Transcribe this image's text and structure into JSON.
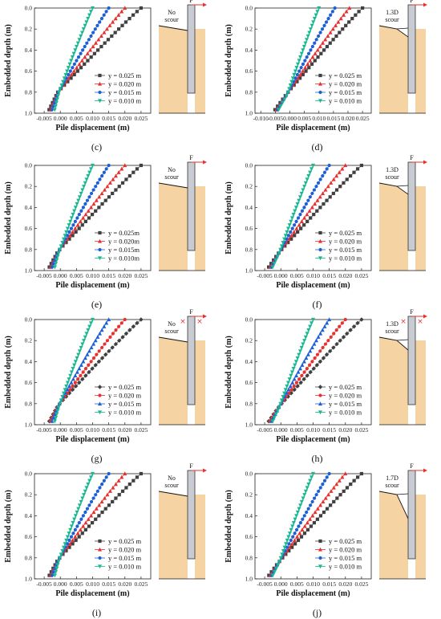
{
  "colors": {
    "y025": "#404040",
    "y020": "#e8312f",
    "y015": "#1c5fd6",
    "y010": "#19b890",
    "soil": "#f5d3a3",
    "pile": "#c8ccd2",
    "arrow": "#e8312f"
  },
  "chart_data": [
    {
      "type": "scatter",
      "panel_label": "(c)",
      "xlabel": "Pile displacement (m)",
      "ylabel": "Embedded depth (m)",
      "xlim": [
        -0.008,
        0.028
      ],
      "ylim": [
        1.0,
        0.0
      ],
      "xticks": [
        "-0.005",
        "0.000",
        "0.005",
        "0.010",
        "0.015",
        "0.020",
        "0.025"
      ],
      "yticks": [
        "0.0",
        "0.2",
        "0.4",
        "0.6",
        "0.8",
        "1.0"
      ],
      "grid": false,
      "legend_position": "bottom-right",
      "series": [
        {
          "name": "y = 0.025 m",
          "marker": "square",
          "x_top": 0.025,
          "x_bottom": -0.004,
          "pivot_depth": 0.8
        },
        {
          "name": "y = 0.020 m",
          "marker": "triangle-up",
          "x_top": 0.02,
          "x_bottom": -0.0035,
          "pivot_depth": 0.8
        },
        {
          "name": "y = 0.015 m",
          "marker": "circle",
          "x_top": 0.015,
          "x_bottom": -0.003,
          "pivot_depth": 0.8
        },
        {
          "name": "y = 0.010 m",
          "marker": "triangle-down",
          "x_top": 0.01,
          "x_bottom": -0.002,
          "pivot_depth": 0.8
        }
      ],
      "schematic": {
        "label_line1": "No",
        "label_line2": "scour",
        "force_label": "F",
        "scour": false,
        "cross_marks": false,
        "scour_depth": "none"
      }
    },
    {
      "type": "scatter",
      "panel_label": "(d)",
      "xlabel": "Pile displacement (m)",
      "ylabel": "Embedded depth (m)",
      "xlim": [
        -0.012,
        0.028
      ],
      "ylim": [
        1.0,
        0.0
      ],
      "xticks": [
        "-0.010",
        "-0.005",
        "0.000",
        "0.005",
        "0.010",
        "0.015",
        "0.020",
        "0.025"
      ],
      "yticks": [
        "0.0",
        "0.2",
        "0.4",
        "0.6",
        "0.8",
        "1.0"
      ],
      "grid": false,
      "legend_position": "bottom-right",
      "series": [
        {
          "name": "y = 0.025 m",
          "marker": "square",
          "x_top": 0.025,
          "x_bottom": -0.006,
          "pivot_depth": 0.82
        },
        {
          "name": "y = 0.020 m",
          "marker": "triangle-up",
          "x_top": 0.0205,
          "x_bottom": -0.0055,
          "pivot_depth": 0.82
        },
        {
          "name": "y = 0.015 m",
          "marker": "circle",
          "x_top": 0.0155,
          "x_bottom": -0.005,
          "pivot_depth": 0.82
        },
        {
          "name": "y = 0.010 m",
          "marker": "triangle-down",
          "x_top": 0.01,
          "x_bottom": -0.0045,
          "pivot_depth": 0.82
        }
      ],
      "schematic": {
        "label_line1": "1.3D",
        "label_line2": "scour",
        "force_label": "F",
        "scour": true,
        "cross_marks": false,
        "scour_depth": "small"
      }
    },
    {
      "type": "scatter",
      "panel_label": "(e)",
      "xlabel": "Pile displacement (m)",
      "ylabel": "Embedded depth (m)",
      "xlim": [
        -0.008,
        0.028
      ],
      "ylim": [
        1.0,
        0.0
      ],
      "xticks": [
        "-0.005",
        "0.000",
        "0.005",
        "0.010",
        "0.015",
        "0.020",
        "0.025"
      ],
      "yticks": [
        "0.0",
        "0.2",
        "0.4",
        "0.6",
        "0.8",
        "1.0"
      ],
      "grid": false,
      "legend_position": "bottom-right",
      "series": [
        {
          "name": "y = 0.025m",
          "marker": "square",
          "x_top": 0.025,
          "x_bottom": -0.004,
          "pivot_depth": 0.82
        },
        {
          "name": "y = 0.020m",
          "marker": "triangle-up",
          "x_top": 0.02,
          "x_bottom": -0.0035,
          "pivot_depth": 0.82
        },
        {
          "name": "y = 0.015m",
          "marker": "circle",
          "x_top": 0.015,
          "x_bottom": -0.003,
          "pivot_depth": 0.82
        },
        {
          "name": "y = 0.010m",
          "marker": "triangle-down",
          "x_top": 0.01,
          "x_bottom": -0.002,
          "pivot_depth": 0.82
        }
      ],
      "schematic": {
        "label_line1": "No",
        "label_line2": "scour",
        "force_label": "F",
        "scour": false,
        "cross_marks": false,
        "scour_depth": "none"
      }
    },
    {
      "type": "scatter",
      "panel_label": "(f)",
      "xlabel": "Pile displacement (m)",
      "ylabel": "Embedded depth (m)",
      "xlim": [
        -0.008,
        0.028
      ],
      "ylim": [
        1.0,
        0.0
      ],
      "xticks": [
        "-0.005",
        "0.000",
        "0.005",
        "0.010",
        "0.015",
        "0.020",
        "0.025"
      ],
      "yticks": [
        "0.0",
        "0.2",
        "0.4",
        "0.6",
        "0.8",
        "1.0"
      ],
      "grid": false,
      "legend_position": "bottom-right",
      "series": [
        {
          "name": "y = 0.025 m",
          "marker": "square",
          "x_top": 0.025,
          "x_bottom": -0.0045,
          "pivot_depth": 0.84
        },
        {
          "name": "y = 0.020 m",
          "marker": "triangle-up",
          "x_top": 0.02,
          "x_bottom": -0.004,
          "pivot_depth": 0.84
        },
        {
          "name": "y = 0.015 m",
          "marker": "circle",
          "x_top": 0.015,
          "x_bottom": -0.0035,
          "pivot_depth": 0.84
        },
        {
          "name": "y = 0.010 m",
          "marker": "triangle-down",
          "x_top": 0.01,
          "x_bottom": -0.003,
          "pivot_depth": 0.84
        }
      ],
      "schematic": {
        "label_line1": "1.3D",
        "label_line2": "scour",
        "force_label": "F",
        "scour": true,
        "cross_marks": false,
        "scour_depth": "small"
      }
    },
    {
      "type": "scatter",
      "panel_label": "(g)",
      "xlabel": "Pile displacement (m)",
      "ylabel": "Embedded depth (m)",
      "xlim": [
        -0.008,
        0.028
      ],
      "ylim": [
        1.0,
        0.0
      ],
      "xticks": [
        "-0.005",
        "0.000",
        "0.005",
        "0.010",
        "0.015",
        "0.020",
        "0.025"
      ],
      "yticks": [
        "0.0",
        "0.2",
        "0.4",
        "0.6",
        "0.8",
        "1.0"
      ],
      "grid": false,
      "legend_position": "bottom-right",
      "series": [
        {
          "name": "y = 0.025 m",
          "marker": "diamond",
          "x_top": 0.025,
          "x_bottom": -0.004,
          "pivot_depth": 0.82
        },
        {
          "name": "y = 0.020 m",
          "marker": "circle",
          "x_top": 0.02,
          "x_bottom": -0.0035,
          "pivot_depth": 0.82
        },
        {
          "name": "y = 0.015 m",
          "marker": "triangle-up",
          "x_top": 0.015,
          "x_bottom": -0.003,
          "pivot_depth": 0.82
        },
        {
          "name": "y = 0.010 m",
          "marker": "triangle-down",
          "x_top": 0.01,
          "x_bottom": -0.002,
          "pivot_depth": 0.82
        }
      ],
      "schematic": {
        "label_line1": "No",
        "label_line2": "scour",
        "force_label": "F",
        "scour": false,
        "cross_marks": true,
        "scour_depth": "none"
      }
    },
    {
      "type": "scatter",
      "panel_label": "(h)",
      "xlabel": "Pile displacement (m)",
      "ylabel": "Embedded depth (m)",
      "xlim": [
        -0.008,
        0.028
      ],
      "ylim": [
        1.0,
        0.0
      ],
      "xticks": [
        "-0.005",
        "0.000",
        "0.005",
        "0.010",
        "0.015",
        "0.020",
        "0.025"
      ],
      "yticks": [
        "0.0",
        "0.2",
        "0.4",
        "0.6",
        "0.8",
        "1.0"
      ],
      "grid": false,
      "legend_position": "bottom-right",
      "series": [
        {
          "name": "y = 0.025 m",
          "marker": "diamond",
          "x_top": 0.025,
          "x_bottom": -0.0045,
          "pivot_depth": 0.84
        },
        {
          "name": "y = 0.020 m",
          "marker": "circle",
          "x_top": 0.02,
          "x_bottom": -0.004,
          "pivot_depth": 0.84
        },
        {
          "name": "y = 0.015 m",
          "marker": "triangle-up",
          "x_top": 0.015,
          "x_bottom": -0.0035,
          "pivot_depth": 0.84
        },
        {
          "name": "y = 0.010 m",
          "marker": "triangle-down",
          "x_top": 0.01,
          "x_bottom": -0.003,
          "pivot_depth": 0.84
        }
      ],
      "schematic": {
        "label_line1": "1.3D",
        "label_line2": "scour",
        "force_label": "F",
        "scour": true,
        "cross_marks": true,
        "scour_depth": "medium"
      }
    },
    {
      "type": "scatter",
      "panel_label": "(i)",
      "xlabel": "Pile displacement (m)",
      "ylabel": "Embedded depth (m)",
      "xlim": [
        -0.008,
        0.028
      ],
      "ylim": [
        1.0,
        0.0
      ],
      "xticks": [
        "-0.005",
        "0.000",
        "0.005",
        "0.010",
        "0.015",
        "0.020",
        "0.025"
      ],
      "yticks": [
        "0.0",
        "0.2",
        "0.4",
        "0.6",
        "0.8",
        "1.0"
      ],
      "grid": false,
      "legend_position": "bottom-right",
      "series": [
        {
          "name": "y = 0.025 m",
          "marker": "square",
          "x_top": 0.025,
          "x_bottom": -0.004,
          "pivot_depth": 0.82
        },
        {
          "name": "y = 0.020 m",
          "marker": "triangle-up",
          "x_top": 0.02,
          "x_bottom": -0.0035,
          "pivot_depth": 0.82
        },
        {
          "name": "y = 0.015 m",
          "marker": "circle",
          "x_top": 0.015,
          "x_bottom": -0.003,
          "pivot_depth": 0.82
        },
        {
          "name": "y = 0.010 m",
          "marker": "triangle-down",
          "x_top": 0.01,
          "x_bottom": -0.002,
          "pivot_depth": 0.82
        }
      ],
      "schematic": {
        "label_line1": "No",
        "label_line2": "scour",
        "force_label": "F",
        "scour": false,
        "cross_marks": false,
        "scour_depth": "none"
      }
    },
    {
      "type": "scatter",
      "panel_label": "(j)",
      "xlabel": "Pile displacement (m)",
      "ylabel": "Embedded depth (m)",
      "xlim": [
        -0.008,
        0.028
      ],
      "ylim": [
        1.0,
        0.0
      ],
      "xticks": [
        "-0.005",
        "0.000",
        "0.005",
        "0.010",
        "0.015",
        "0.020",
        "0.025"
      ],
      "yticks": [
        "0.0",
        "0.2",
        "0.4",
        "0.6",
        "0.8",
        "1.0"
      ],
      "grid": false,
      "legend_position": "bottom-right",
      "series": [
        {
          "name": "y = 0.025 m",
          "marker": "square",
          "x_top": 0.025,
          "x_bottom": -0.0045,
          "pivot_depth": 0.85
        },
        {
          "name": "y = 0.020 m",
          "marker": "triangle-up",
          "x_top": 0.02,
          "x_bottom": -0.004,
          "pivot_depth": 0.85
        },
        {
          "name": "y = 0.015 m",
          "marker": "circle",
          "x_top": 0.015,
          "x_bottom": -0.0035,
          "pivot_depth": 0.85
        },
        {
          "name": "y = 0.010 m",
          "marker": "triangle-down",
          "x_top": 0.01,
          "x_bottom": -0.003,
          "pivot_depth": 0.85
        }
      ],
      "schematic": {
        "label_line1": "1.7D",
        "label_line2": "scour",
        "force_label": "F",
        "scour": true,
        "cross_marks": false,
        "scour_depth": "large"
      }
    }
  ]
}
